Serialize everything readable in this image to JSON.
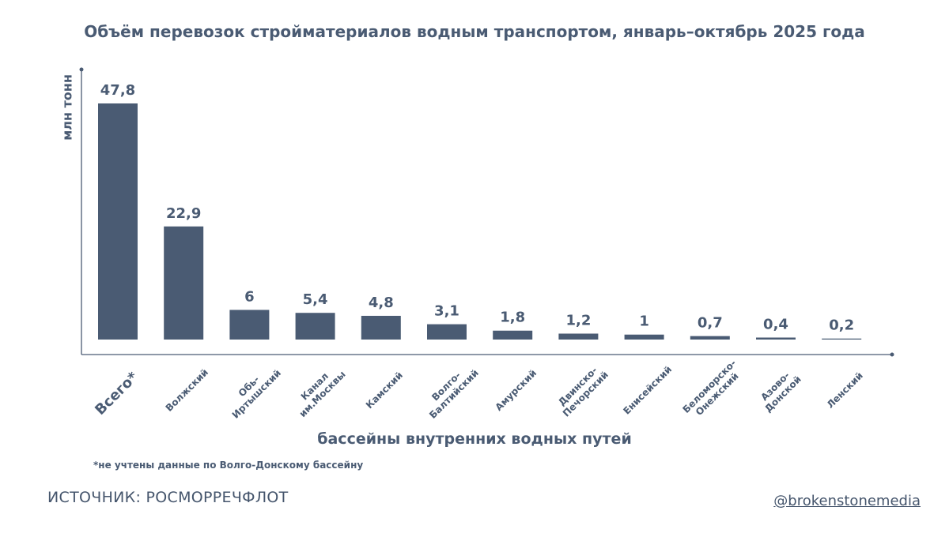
{
  "colors": {
    "text": "#4a5b73",
    "bar": "#4a5b73",
    "axis": "#4a5b73"
  },
  "header": {
    "title": "Объём перевозок стройматериалов водным транспортом, январь–октябрь 2025 года"
  },
  "chart_data": {
    "type": "bar",
    "title": "Объём перевозок стройматериалов водным транспортом, январь–октябрь 2025 года",
    "ylabel": "млн тонн",
    "xlabel": "бассейны внутренних водных путей",
    "ylim": [
      0,
      55
    ],
    "grid": false,
    "categories": [
      "Всего*",
      "Волжский",
      "Обь-\nИртышский",
      "Канал\nим.Москвы",
      "Камский",
      "Волго-\nБалтийский",
      "Амурский",
      "Двинско-\nПечорский",
      "Енисейский",
      "Беломорско-\nОнежский",
      "Азово-\nДонской",
      "Ленский"
    ],
    "values": [
      47.8,
      22.9,
      6,
      5.4,
      4.8,
      3.1,
      1.8,
      1.2,
      1,
      0.7,
      0.4,
      0.2
    ],
    "value_labels": [
      "47,8",
      "22,9",
      "6",
      "5,4",
      "4,8",
      "3,1",
      "1,8",
      "1,2",
      "1",
      "0,7",
      "0,4",
      "0,2"
    ]
  },
  "footer": {
    "footnote": "*не учтены данные по Волго-Донскому бассейну",
    "source": "ИСТОЧНИК: РОСМОРРЕЧФЛОТ",
    "handle": "@brokenstonemedia"
  }
}
